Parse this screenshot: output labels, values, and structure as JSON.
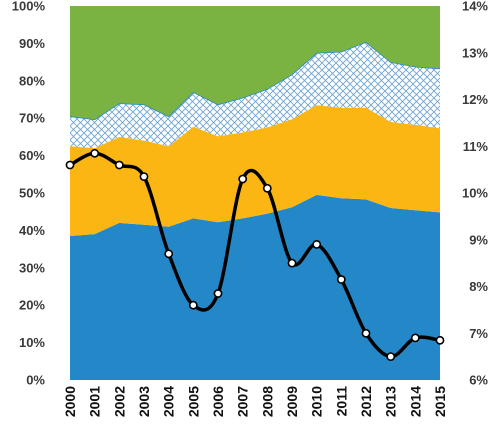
{
  "chart_data": {
    "type": "area",
    "categories": [
      "2000",
      "2001",
      "2002",
      "2003",
      "2004",
      "2005",
      "2006",
      "2007",
      "2008",
      "2009",
      "2010",
      "2011",
      "2012",
      "2013",
      "2014",
      "2015"
    ],
    "series": [
      {
        "values": [
          38.5,
          39,
          42,
          41.5,
          41,
          43.2,
          42.2,
          43.2,
          44.5,
          46.2,
          49.5,
          48.6,
          48.3,
          46,
          45.4,
          44.8
        ],
        "color": "#2488C8"
      },
      {
        "values": [
          24,
          23,
          23,
          22.5,
          21.5,
          24.5,
          23,
          23,
          23,
          23.5,
          24,
          24.2,
          24.5,
          23,
          22.8,
          22.5
        ],
        "color": "#FBB614"
      },
      {
        "values": [
          8,
          7.7,
          9,
          9.7,
          8,
          9.3,
          8.5,
          9.3,
          10.3,
          12,
          14,
          15,
          17.6,
          16,
          15.6,
          16
        ],
        "color": "#8FB6D6",
        "pattern": "crosshatch"
      },
      {
        "values": [
          29.5,
          30.3,
          26,
          26.3,
          29.5,
          23,
          26.3,
          24.5,
          22.2,
          18.3,
          12.5,
          12.2,
          9.6,
          15,
          16.2,
          16.7
        ],
        "color": "#7BB342"
      }
    ],
    "line_series": {
      "axis": "right",
      "values": [
        10.6,
        10.85,
        10.6,
        10.35,
        8.7,
        7.6,
        7.85,
        10.3,
        10.1,
        8.5,
        8.9,
        8.15,
        7.0,
        6.5,
        6.9,
        6.85
      ],
      "color": "#000000"
    },
    "ylim": [
      0,
      100
    ],
    "y_ticks": [
      "0%",
      "10%",
      "20%",
      "30%",
      "40%",
      "50%",
      "60%",
      "70%",
      "80%",
      "90%",
      "100%"
    ],
    "y2lim": [
      6,
      14
    ],
    "y2_ticks": [
      "6%",
      "7%",
      "8%",
      "9%",
      "10%",
      "11%",
      "12%",
      "13%",
      "14%"
    ],
    "stacked": true,
    "grid": false,
    "legend": "none"
  }
}
